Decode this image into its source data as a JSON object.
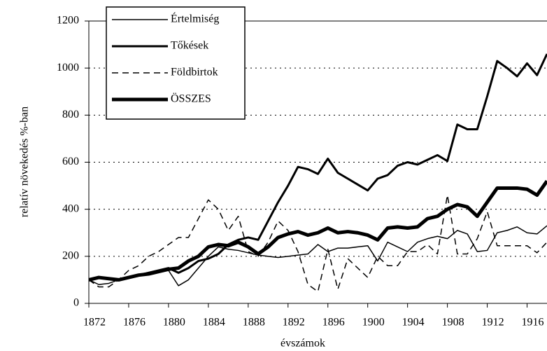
{
  "chart_data": {
    "type": "line",
    "xlabel": "évszámok",
    "ylabel": "relatív növekedés %-ban",
    "x": [
      1872,
      1873,
      1874,
      1875,
      1876,
      1877,
      1878,
      1879,
      1880,
      1881,
      1882,
      1883,
      1884,
      1885,
      1886,
      1887,
      1888,
      1889,
      1890,
      1891,
      1892,
      1893,
      1894,
      1895,
      1896,
      1897,
      1898,
      1899,
      1900,
      1901,
      1902,
      1903,
      1904,
      1905,
      1906,
      1907,
      1908,
      1909,
      1910,
      1911,
      1912,
      1913,
      1914,
      1915,
      1916,
      1917,
      1918
    ],
    "xlim": [
      1872,
      1918
    ],
    "xticks": [
      1872,
      1876,
      1880,
      1884,
      1888,
      1892,
      1896,
      1900,
      1904,
      1908,
      1912,
      1916
    ],
    "ylim": [
      0,
      1200
    ],
    "yticks": [
      0,
      200,
      400,
      600,
      800,
      1000,
      1200
    ],
    "grid": true,
    "series": [
      {
        "name": "Értelmiség",
        "color": "#000000",
        "style": "thin",
        "values": [
          100,
          80,
          85,
          100,
          110,
          120,
          130,
          140,
          140,
          75,
          100,
          150,
          200,
          240,
          230,
          225,
          215,
          205,
          200,
          195,
          200,
          205,
          210,
          250,
          220,
          235,
          235,
          240,
          245,
          180,
          260,
          240,
          220,
          260,
          275,
          285,
          275,
          310,
          295,
          220,
          225,
          300,
          310,
          325,
          300,
          295,
          330
        ]
      },
      {
        "name": "Tőkések",
        "color": "#000000",
        "style": "medium",
        "values": [
          100,
          110,
          105,
          100,
          110,
          120,
          130,
          140,
          150,
          130,
          150,
          180,
          190,
          210,
          250,
          270,
          280,
          270,
          350,
          430,
          500,
          580,
          570,
          550,
          615,
          555,
          530,
          505,
          480,
          530,
          545,
          585,
          600,
          590,
          610,
          630,
          605,
          760,
          740,
          740,
          880,
          1030,
          1000,
          965,
          1020,
          970,
          1060
        ]
      },
      {
        "name": "Földbirtok",
        "color": "#000000",
        "style": "dashed",
        "values": [
          100,
          70,
          70,
          100,
          140,
          160,
          200,
          220,
          250,
          280,
          280,
          360,
          440,
          400,
          310,
          370,
          220,
          200,
          260,
          350,
          310,
          220,
          80,
          50,
          230,
          60,
          190,
          150,
          110,
          200,
          160,
          160,
          220,
          220,
          250,
          210,
          460,
          210,
          210,
          275,
          390,
          245,
          245,
          245,
          245,
          215,
          260
        ]
      },
      {
        "name": "ÖSSZES",
        "color": "#000000",
        "style": "thick",
        "values": [
          100,
          110,
          105,
          100,
          110,
          120,
          125,
          135,
          145,
          150,
          180,
          200,
          240,
          250,
          245,
          260,
          240,
          210,
          240,
          280,
          295,
          305,
          290,
          300,
          320,
          300,
          305,
          300,
          290,
          270,
          320,
          325,
          320,
          325,
          360,
          370,
          400,
          420,
          410,
          370,
          430,
          490,
          490,
          490,
          485,
          460,
          520
        ]
      }
    ]
  }
}
